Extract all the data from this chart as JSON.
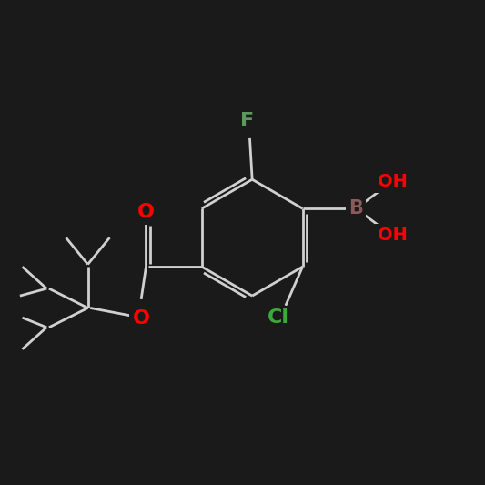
{
  "background_color": "#1a1a1a",
  "bond_color": "#d0d0d0",
  "bond_width": 2.0,
  "atom_colors": {
    "O": "#ff0000",
    "B": "#8b5a5a",
    "F": "#5a9a5a",
    "Cl": "#3aaa3a",
    "white": "#d0d0d0"
  },
  "figsize": [
    5.33,
    5.33
  ],
  "dpi": 100
}
